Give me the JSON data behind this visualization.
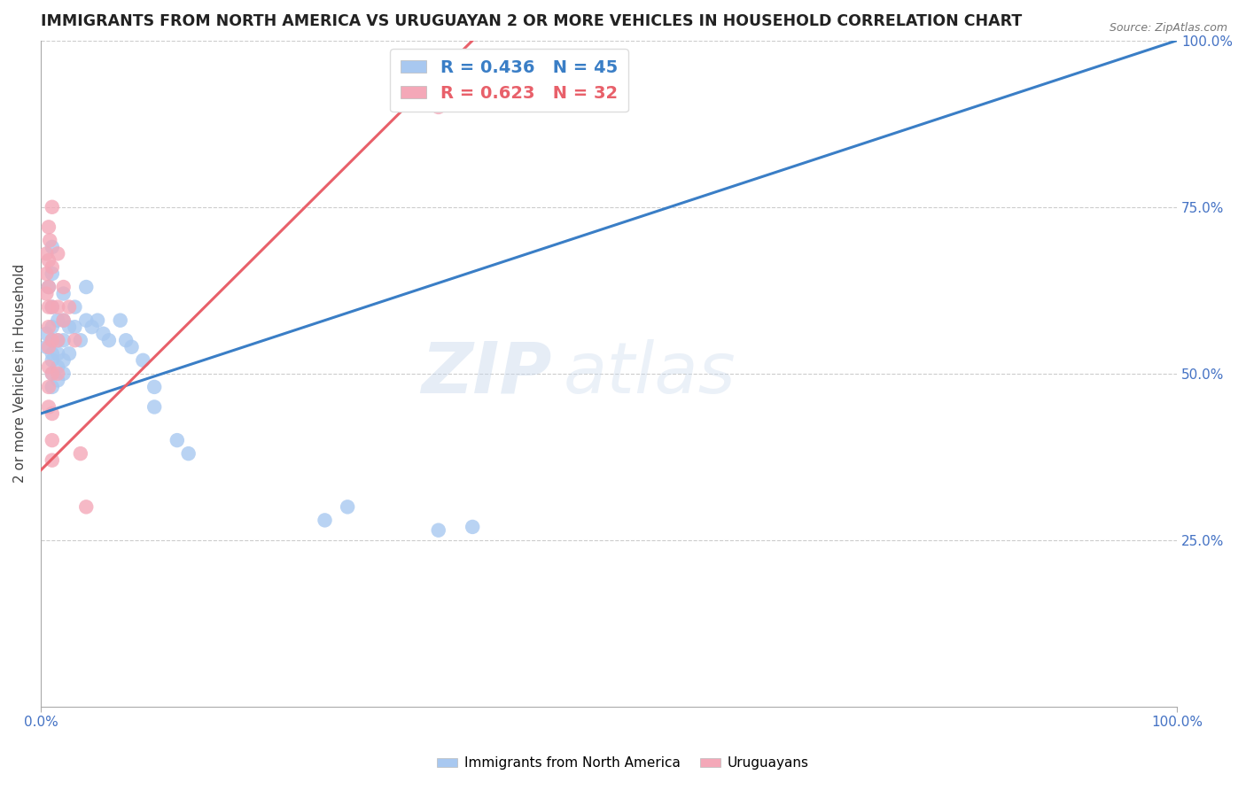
{
  "title": "IMMIGRANTS FROM NORTH AMERICA VS URUGUAYAN 2 OR MORE VEHICLES IN HOUSEHOLD CORRELATION CHART",
  "source": "Source: ZipAtlas.com",
  "ylabel": "2 or more Vehicles in Household",
  "xlim": [
    0.0,
    1.0
  ],
  "ylim": [
    0.0,
    1.0
  ],
  "blue_R": 0.436,
  "blue_N": 45,
  "pink_R": 0.623,
  "pink_N": 32,
  "blue_color": "#A8C8F0",
  "pink_color": "#F4A8B8",
  "blue_line_color": "#3A7EC6",
  "pink_line_color": "#E8606A",
  "legend_label_blue": "Immigrants from North America",
  "legend_label_pink": "Uruguayans",
  "axis_color": "#4472C4",
  "watermark_zip": "ZIP",
  "watermark_atlas": "atlas",
  "blue_trendline_x": [
    0.0,
    1.0
  ],
  "blue_trendline_y": [
    0.44,
    1.0
  ],
  "pink_trendline_x": [
    0.0,
    0.38
  ],
  "pink_trendline_y": [
    0.355,
    1.0
  ],
  "blue_scatter": [
    [
      0.005,
      0.56
    ],
    [
      0.005,
      0.54
    ],
    [
      0.007,
      0.63
    ],
    [
      0.01,
      0.69
    ],
    [
      0.01,
      0.65
    ],
    [
      0.01,
      0.6
    ],
    [
      0.01,
      0.57
    ],
    [
      0.01,
      0.55
    ],
    [
      0.01,
      0.53
    ],
    [
      0.01,
      0.52
    ],
    [
      0.01,
      0.5
    ],
    [
      0.01,
      0.48
    ],
    [
      0.015,
      0.58
    ],
    [
      0.015,
      0.55
    ],
    [
      0.015,
      0.53
    ],
    [
      0.015,
      0.51
    ],
    [
      0.015,
      0.49
    ],
    [
      0.02,
      0.62
    ],
    [
      0.02,
      0.58
    ],
    [
      0.02,
      0.55
    ],
    [
      0.02,
      0.52
    ],
    [
      0.02,
      0.5
    ],
    [
      0.025,
      0.57
    ],
    [
      0.025,
      0.53
    ],
    [
      0.03,
      0.6
    ],
    [
      0.03,
      0.57
    ],
    [
      0.035,
      0.55
    ],
    [
      0.04,
      0.63
    ],
    [
      0.04,
      0.58
    ],
    [
      0.045,
      0.57
    ],
    [
      0.05,
      0.58
    ],
    [
      0.055,
      0.56
    ],
    [
      0.06,
      0.55
    ],
    [
      0.07,
      0.58
    ],
    [
      0.075,
      0.55
    ],
    [
      0.08,
      0.54
    ],
    [
      0.09,
      0.52
    ],
    [
      0.1,
      0.48
    ],
    [
      0.1,
      0.45
    ],
    [
      0.12,
      0.4
    ],
    [
      0.13,
      0.38
    ],
    [
      0.25,
      0.28
    ],
    [
      0.27,
      0.3
    ],
    [
      0.35,
      0.265
    ],
    [
      0.38,
      0.27
    ]
  ],
  "pink_scatter": [
    [
      0.005,
      0.68
    ],
    [
      0.005,
      0.65
    ],
    [
      0.005,
      0.62
    ],
    [
      0.007,
      0.72
    ],
    [
      0.007,
      0.67
    ],
    [
      0.007,
      0.63
    ],
    [
      0.007,
      0.6
    ],
    [
      0.007,
      0.57
    ],
    [
      0.007,
      0.54
    ],
    [
      0.007,
      0.51
    ],
    [
      0.007,
      0.48
    ],
    [
      0.007,
      0.45
    ],
    [
      0.008,
      0.7
    ],
    [
      0.01,
      0.75
    ],
    [
      0.01,
      0.66
    ],
    [
      0.01,
      0.6
    ],
    [
      0.01,
      0.55
    ],
    [
      0.01,
      0.5
    ],
    [
      0.01,
      0.44
    ],
    [
      0.01,
      0.4
    ],
    [
      0.01,
      0.37
    ],
    [
      0.015,
      0.68
    ],
    [
      0.015,
      0.6
    ],
    [
      0.015,
      0.55
    ],
    [
      0.015,
      0.5
    ],
    [
      0.02,
      0.63
    ],
    [
      0.02,
      0.58
    ],
    [
      0.025,
      0.6
    ],
    [
      0.03,
      0.55
    ],
    [
      0.035,
      0.38
    ],
    [
      0.04,
      0.3
    ],
    [
      0.35,
      0.9
    ]
  ]
}
